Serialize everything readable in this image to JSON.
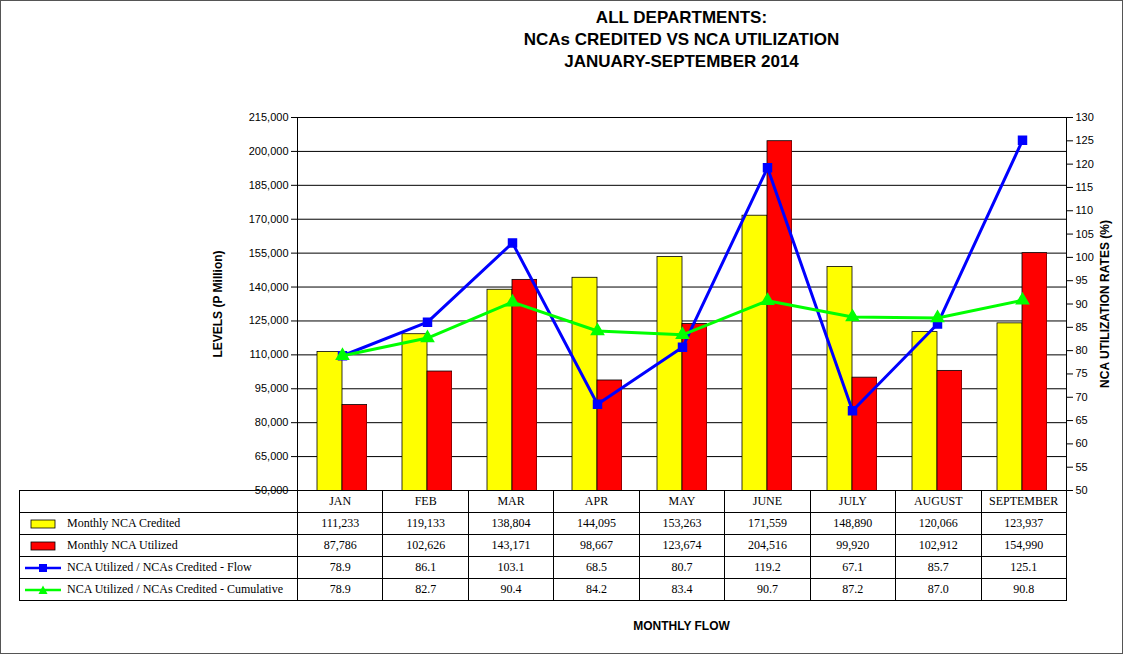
{
  "chart_data": {
    "type": "bar",
    "title": "ALL DEPARTMENTS:\nNCAs CREDITED VS NCA UTILIZATION\nJANUARY-SEPTEMBER 2014",
    "x_label": "MONTHLY FLOW",
    "y_label": "LEVELS (P Million)",
    "y2_label": "NCA UTILIZATION RATES (%)",
    "categories": [
      "JAN",
      "FEB",
      "MAR",
      "APR",
      "MAY",
      "JUNE",
      "JULY",
      "AUGUST",
      "SEPTEMBER"
    ],
    "ylim": [
      50000,
      215000
    ],
    "yticks": [
      {
        "value": 50000,
        "label": "50,000"
      },
      {
        "value": 65000,
        "label": "65,000"
      },
      {
        "value": 80000,
        "label": "80,000"
      },
      {
        "value": 95000,
        "label": "95,000"
      },
      {
        "value": 110000,
        "label": "110,000"
      },
      {
        "value": 125000,
        "label": "125,000"
      },
      {
        "value": 140000,
        "label": "140,000"
      },
      {
        "value": 155000,
        "label": "155,000"
      },
      {
        "value": 170000,
        "label": "170,000"
      },
      {
        "value": 185000,
        "label": "185,000"
      },
      {
        "value": 200000,
        "label": "200,000"
      },
      {
        "value": 215000,
        "label": "215,000"
      }
    ],
    "y2lim": [
      50,
      130
    ],
    "y2ticks": [
      50,
      55,
      60,
      65,
      70,
      75,
      80,
      85,
      90,
      95,
      100,
      105,
      110,
      115,
      120,
      125,
      130
    ],
    "grid": true,
    "series": [
      {
        "name": "Monthly NCA Credited",
        "type": "bar",
        "color": "#ffff00",
        "values": [
          111233,
          119133,
          138804,
          144095,
          153263,
          171559,
          148890,
          120066,
          123937
        ],
        "value_labels": [
          "111,233",
          "119,133",
          "138,804",
          "144,095",
          "153,263",
          "171,559",
          "148,890",
          "120,066",
          "123,937"
        ]
      },
      {
        "name": "Monthly NCA Utilized",
        "type": "bar",
        "color": "#ff0000",
        "values": [
          87786,
          102626,
          143171,
          98667,
          123674,
          204516,
          99920,
          102912,
          154990
        ],
        "value_labels": [
          "87,786",
          "102,626",
          "143,171",
          "98,667",
          "123,674",
          "204,516",
          "99,920",
          "102,912",
          "154,990"
        ]
      },
      {
        "name": "NCA Utilized / NCAs Credited  - Flow",
        "type": "line",
        "axis": "y2",
        "color": "#0000ff",
        "marker": "square",
        "values": [
          78.9,
          86.1,
          103.1,
          68.5,
          80.7,
          119.2,
          67.1,
          85.7,
          125.1
        ],
        "value_labels": [
          "78.9",
          "86.1",
          "103.1",
          "68.5",
          "80.7",
          "119.2",
          "67.1",
          "85.7",
          "125.1"
        ]
      },
      {
        "name": "NCA Utilized / NCAs Credited  - Cumulative",
        "type": "line",
        "axis": "y2",
        "color": "#00ff00",
        "marker": "triangle",
        "values": [
          78.9,
          82.7,
          90.4,
          84.2,
          83.4,
          90.7,
          87.2,
          87.0,
          90.8
        ],
        "value_labels": [
          "78.9",
          "82.7",
          "90.4",
          "84.2",
          "83.4",
          "90.7",
          "87.2",
          "87.0",
          "90.8"
        ]
      }
    ]
  }
}
